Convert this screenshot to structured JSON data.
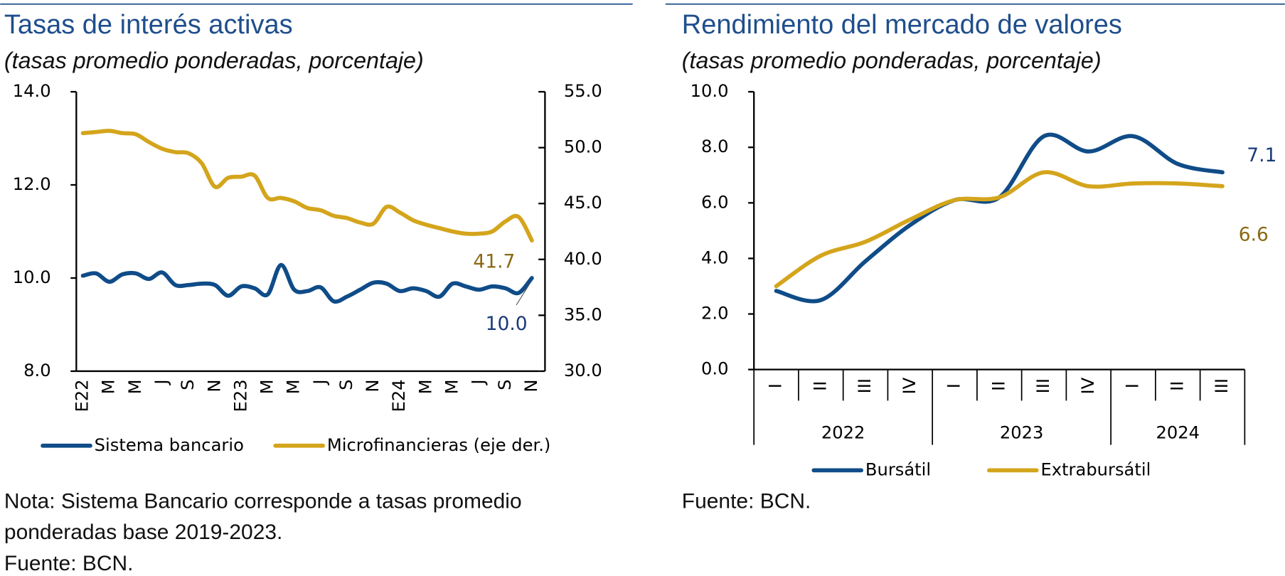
{
  "chart_data": [
    {
      "type": "line",
      "title": "Tasas de interés activas",
      "subtitle": "(tasas promedio ponderadas, porcentaje)",
      "categories": [
        "E22",
        null,
        "M",
        null,
        "M",
        null,
        "J",
        null,
        "S",
        null,
        "N",
        null,
        "E23",
        null,
        "M",
        null,
        "M",
        null,
        "J",
        null,
        "S",
        null,
        "N",
        null,
        "E24",
        null,
        "M",
        null,
        "M",
        null,
        "J",
        null,
        "S",
        null,
        "N"
      ],
      "series": [
        {
          "name": "Sistema bancario",
          "color": "#0f4c88",
          "end_label": "10.0",
          "values": [
            10.05,
            10.1,
            9.92,
            10.08,
            10.1,
            9.98,
            10.12,
            9.85,
            9.85,
            9.88,
            9.85,
            9.62,
            9.82,
            9.78,
            9.65,
            10.28,
            9.75,
            9.72,
            9.8,
            9.5,
            9.6,
            9.75,
            9.9,
            9.88,
            9.72,
            9.78,
            9.72,
            9.6,
            9.88,
            9.82,
            9.75,
            9.82,
            9.78,
            9.68,
            10.0
          ]
        },
        {
          "name": "Microfinancieras (eje der.)",
          "color": "#d4a51c",
          "axis": "y2",
          "end_label": "41.7",
          "values": [
            51.3,
            51.4,
            51.5,
            51.3,
            51.2,
            50.5,
            49.9,
            49.6,
            49.5,
            48.6,
            46.5,
            47.3,
            47.4,
            47.5,
            45.5,
            45.5,
            45.2,
            44.6,
            44.4,
            43.9,
            43.7,
            43.3,
            43.2,
            44.7,
            44.2,
            43.5,
            43.1,
            42.8,
            42.5,
            42.3,
            42.3,
            42.5,
            43.4,
            43.8,
            41.7
          ]
        }
      ],
      "ylim": [
        8,
        14
      ],
      "yticks": [
        {
          "value": 8,
          "label": "8.0"
        },
        {
          "value": 10,
          "label": "10.0"
        },
        {
          "value": 12,
          "label": "12.0"
        },
        {
          "value": 14,
          "label": "14.0"
        }
      ],
      "y2lim": [
        30,
        55
      ],
      "y2ticks": [
        {
          "value": 30,
          "label": "30.0"
        },
        {
          "value": 35,
          "label": "35.0"
        },
        {
          "value": 40,
          "label": "40.0"
        },
        {
          "value": 45,
          "label": "45.0"
        },
        {
          "value": 50,
          "label": "50.0"
        },
        {
          "value": 55,
          "label": "55.0"
        }
      ],
      "legend": "bottom",
      "note": "Nota: Sistema Bancario corresponde a tasas promedio ponderadas base 2019-2023.",
      "source": "Fuente: BCN."
    },
    {
      "type": "line",
      "title": "Rendimiento del mercado de valores",
      "subtitle": "(tasas promedio ponderadas, porcentaje)",
      "categories": [
        "I",
        "II",
        "III",
        "IV",
        "I",
        "II",
        "III",
        "IV",
        "I",
        "II",
        "III"
      ],
      "groups": [
        "2022",
        "2023",
        "2024"
      ],
      "series": [
        {
          "name": "Bursátil",
          "color": "#0f4c88",
          "end_label": "7.1",
          "values": [
            2.83,
            2.5,
            3.9,
            5.2,
            6.1,
            6.2,
            8.4,
            7.85,
            8.4,
            7.4,
            7.1
          ]
        },
        {
          "name": "Extrabursátil",
          "color": "#d4a51c",
          "end_label": "6.6",
          "values": [
            3.0,
            4.1,
            4.6,
            5.4,
            6.1,
            6.2,
            7.1,
            6.6,
            6.7,
            6.7,
            6.6
          ]
        }
      ],
      "ylim": [
        0,
        10
      ],
      "yticks": [
        {
          "value": 0,
          "label": "0.0"
        },
        {
          "value": 2,
          "label": "2.0"
        },
        {
          "value": 4,
          "label": "4.0"
        },
        {
          "value": 6,
          "label": "6.0"
        },
        {
          "value": 8,
          "label": "8.0"
        },
        {
          "value": 10,
          "label": "10.0"
        }
      ],
      "legend": "bottom",
      "source": "Fuente: BCN."
    }
  ]
}
